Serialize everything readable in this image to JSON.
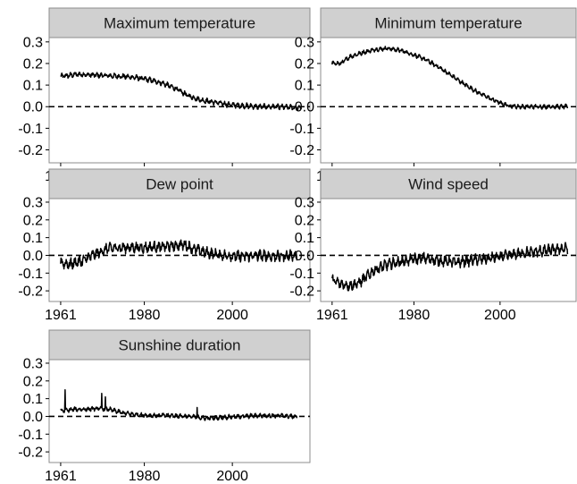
{
  "chart_data": {
    "type": "line",
    "layout": "facet-grid",
    "x_ticks": [
      1961,
      1980,
      2000
    ],
    "xlim": [
      1960,
      2016
    ],
    "y_ticks": [
      0.3,
      0.2,
      0.1,
      0.0,
      -0.1,
      -0.2
    ],
    "y_tick_labels": [
      "0.3",
      "0.2",
      "0.1",
      "0.0",
      "-0.1",
      "-0.2"
    ],
    "ylim": [
      -0.26,
      0.32
    ],
    "reference_line": {
      "y": 0.0,
      "style": "dashed"
    },
    "grid": false,
    "panels": [
      {
        "title": "Maximum temperature",
        "x_end": 2015.7,
        "x": [
          1961,
          1965,
          1970,
          1975,
          1978,
          1981,
          1984,
          1987,
          1990,
          1993,
          1996,
          1999,
          2002,
          2006,
          2010,
          2015
        ],
        "y": [
          0.14,
          0.15,
          0.145,
          0.14,
          0.135,
          0.125,
          0.11,
          0.085,
          0.05,
          0.03,
          0.02,
          0.01,
          0.005,
          0.0,
          0.0,
          -0.005
        ],
        "noise": 0.012
      },
      {
        "title": "Minimum temperature",
        "x_end": 2015.7,
        "x": [
          1961,
          1963,
          1965,
          1968,
          1971,
          1974,
          1977,
          1980,
          1983,
          1986,
          1989,
          1992,
          1995,
          1998,
          2001,
          2004,
          2008,
          2015
        ],
        "y": [
          0.2,
          0.2,
          0.23,
          0.25,
          0.265,
          0.27,
          0.26,
          0.24,
          0.215,
          0.18,
          0.14,
          0.1,
          0.065,
          0.035,
          0.01,
          0.0,
          0.0,
          0.0
        ],
        "noise": 0.01
      },
      {
        "title": "Dew point",
        "x_end": 2014.7,
        "x": [
          1961,
          1963,
          1966,
          1969,
          1972,
          1976,
          1980,
          1985,
          1989,
          1992,
          1995,
          1998,
          2002,
          2006,
          2010,
          2014
        ],
        "y": [
          -0.04,
          -0.05,
          -0.03,
          0.01,
          0.04,
          0.045,
          0.045,
          0.05,
          0.06,
          0.03,
          0.01,
          0.0,
          -0.005,
          0.0,
          -0.005,
          0.0
        ],
        "noise": 0.03
      },
      {
        "title": "Wind speed",
        "x_end": 2015.7,
        "x": [
          1961,
          1963,
          1965,
          1967,
          1969,
          1971,
          1974,
          1978,
          1982,
          1986,
          1990,
          1994,
          1998,
          2002,
          2006,
          2010,
          2015
        ],
        "y": [
          -0.14,
          -0.16,
          -0.17,
          -0.16,
          -0.12,
          -0.08,
          -0.05,
          -0.03,
          -0.015,
          -0.03,
          -0.04,
          -0.025,
          -0.015,
          0.0,
          0.015,
          0.025,
          0.04
        ],
        "noise": 0.03
      },
      {
        "title": "Sunshine duration",
        "x_end": 2014.7,
        "x": [
          1961,
          1964,
          1967,
          1970,
          1972,
          1975,
          1978,
          1982,
          1986,
          1990,
          1994,
          1998,
          2002,
          2006,
          2010,
          2014
        ],
        "y": [
          0.03,
          0.04,
          0.04,
          0.045,
          0.04,
          0.02,
          0.01,
          0.005,
          0.005,
          0.0,
          -0.01,
          -0.005,
          0.0,
          0.005,
          0.005,
          0.0
        ],
        "noise": 0.012,
        "spikes": [
          [
            1962,
            0.15
          ],
          [
            1970.3,
            0.13
          ],
          [
            1971.2,
            0.11
          ],
          [
            1992,
            0.05
          ]
        ]
      }
    ]
  }
}
